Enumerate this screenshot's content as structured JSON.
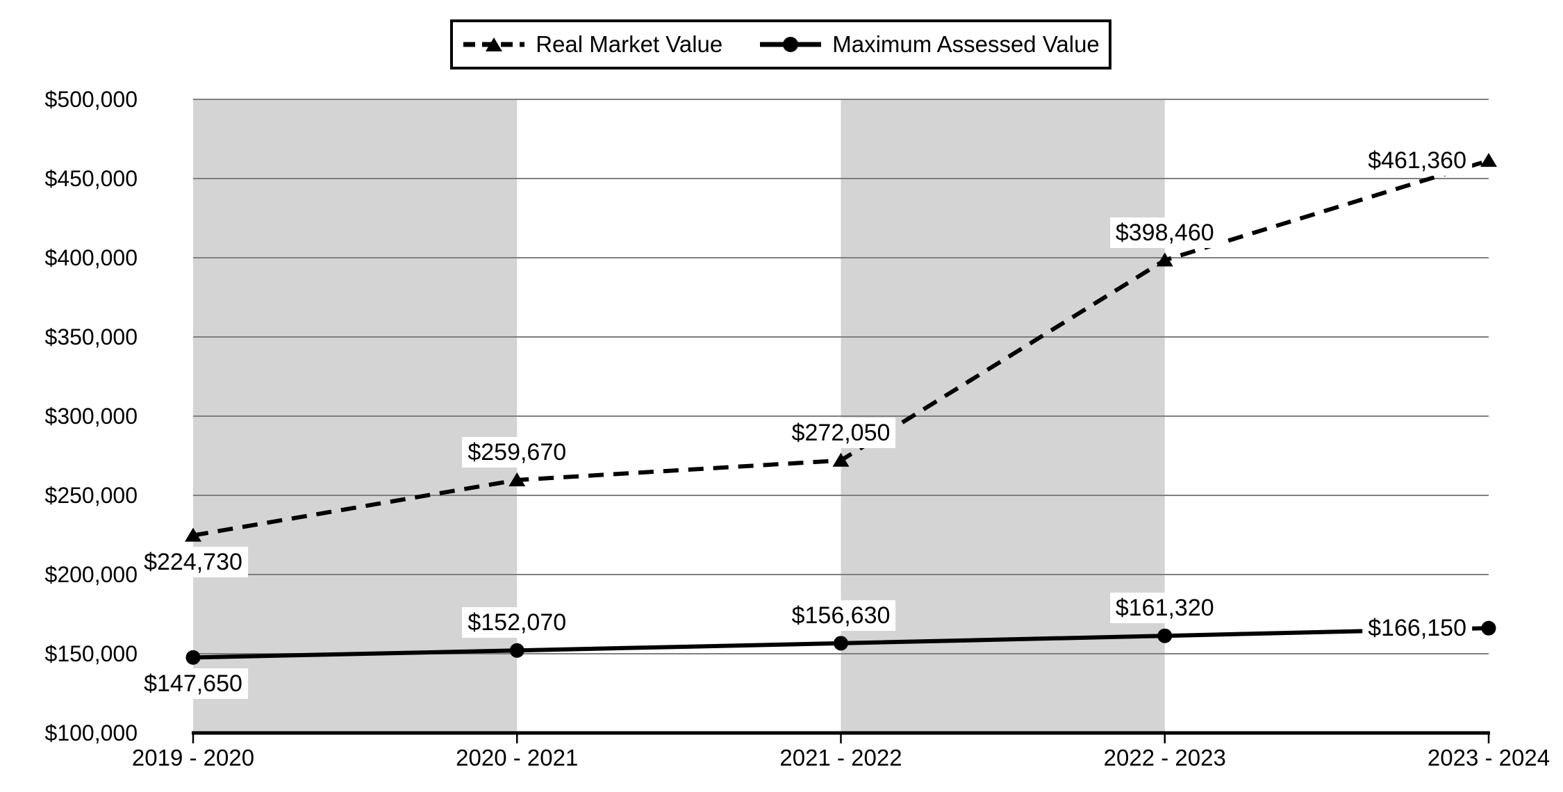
{
  "chart_data": {
    "type": "line",
    "title": "",
    "categories": [
      "2019 - 2020",
      "2020 - 2021",
      "2021 - 2022",
      "2022 - 2023",
      "2023 - 2024"
    ],
    "series": [
      {
        "name": "Real Market Value",
        "line_style": "dashed",
        "marker": "triangle",
        "values": [
          224730,
          259670,
          272050,
          398460,
          461360
        ],
        "data_labels": [
          "$224,730",
          "$259,670",
          "$272,050",
          "$398,460",
          "$461,360"
        ]
      },
      {
        "name": "Maximum Assessed Value",
        "line_style": "solid",
        "marker": "circle",
        "values": [
          147650,
          152070,
          156630,
          161320,
          166150
        ],
        "data_labels": [
          "$147,650",
          "$152,070",
          "$156,630",
          "$161,320",
          "$166,150"
        ]
      }
    ],
    "xlabel": "",
    "ylabel": "",
    "ylim": [
      100000,
      500000
    ],
    "ytick_step": 50000,
    "y_tick_labels": [
      "$500,000",
      "$450,000",
      "$400,000",
      "$350,000",
      "$300,000",
      "$250,000",
      "$200,000",
      "$150,000",
      "$100,000"
    ],
    "grid": true,
    "legend_position": "top",
    "plot_bands": {
      "color": "#d4d4d4",
      "intervals": [
        [
          0,
          1
        ],
        [
          2,
          3
        ]
      ]
    },
    "data_label_positions": [
      "below",
      "above",
      "above",
      "above",
      "left"
    ],
    "colors": {
      "series": "#000000",
      "gridline": "#7f7f7f",
      "axis": "#000000",
      "background": "#ffffff",
      "label_background": "#ffffff"
    }
  }
}
